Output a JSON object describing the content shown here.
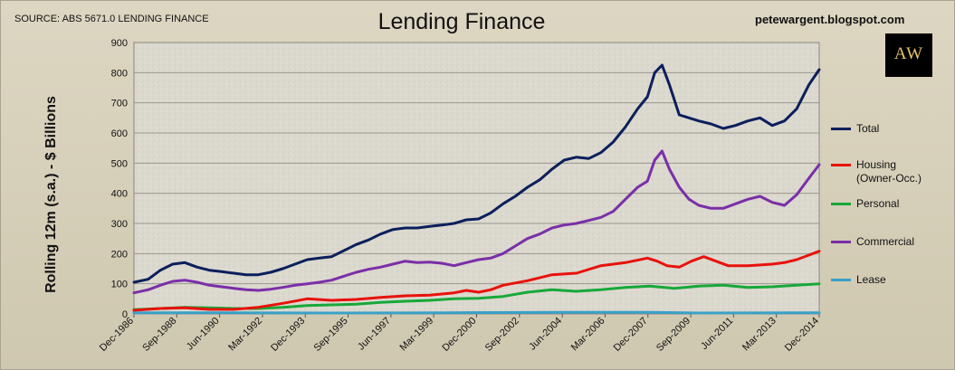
{
  "header": {
    "source": "SOURCE: ABS 5671.0 LENDING FINANCE",
    "blog": "petewargent.blogspot.com",
    "logo_text": "AW"
  },
  "colors": {
    "Total": "#0b1f5c",
    "Housing": "#e8120c",
    "Personal": "#18a83a",
    "Commercial": "#7a2fa8",
    "Lease": "#3aa0c8"
  },
  "chart_data": {
    "type": "line",
    "title": "Lending Finance",
    "xlabel": "",
    "ylabel": "Rolling 12m (s.a.) - $ Billions",
    "ylim": [
      0,
      900
    ],
    "yticks": [
      0,
      100,
      200,
      300,
      400,
      500,
      600,
      700,
      800,
      900
    ],
    "xlim": [
      1986.92,
      2014.92
    ],
    "xtick_labels": [
      "Dec-1986",
      "Sep-1988",
      "Jun-1990",
      "Mar-1992",
      "Dec-1993",
      "Sep-1995",
      "Jun-1997",
      "Mar-1999",
      "Dec-2000",
      "Sep-2002",
      "Jun-2004",
      "Mar-2006",
      "Dec-2007",
      "Sep-2009",
      "Jun-2011",
      "Mar-2013",
      "Dec-2014"
    ],
    "xtick_values": [
      1986.92,
      1988.67,
      1990.42,
      1992.17,
      1993.92,
      1995.67,
      1997.42,
      1999.17,
      2000.92,
      2002.67,
      2004.42,
      2006.17,
      2007.92,
      2009.67,
      2011.42,
      2013.17,
      2014.92
    ],
    "grid": true,
    "legend": "right",
    "series": [
      {
        "name": "Total",
        "label": "Total",
        "x": [
          1986.92,
          1987.5,
          1988.0,
          1988.5,
          1989.0,
          1989.5,
          1990.0,
          1990.5,
          1991.0,
          1991.5,
          1992.0,
          1992.5,
          1993.0,
          1993.5,
          1994.0,
          1994.5,
          1995.0,
          1995.5,
          1996.0,
          1996.5,
          1997.0,
          1997.5,
          1998.0,
          1998.5,
          1999.0,
          1999.5,
          2000.0,
          2000.5,
          2001.0,
          2001.5,
          2002.0,
          2002.5,
          2003.0,
          2003.5,
          2004.0,
          2004.5,
          2005.0,
          2005.5,
          2006.0,
          2006.5,
          2007.0,
          2007.5,
          2007.9,
          2008.2,
          2008.5,
          2008.8,
          2009.2,
          2009.6,
          2010.0,
          2010.5,
          2011.0,
          2011.5,
          2012.0,
          2012.5,
          2013.0,
          2013.5,
          2014.0,
          2014.5,
          2014.92
        ],
        "values": [
          105,
          115,
          145,
          165,
          170,
          155,
          145,
          140,
          135,
          130,
          130,
          138,
          150,
          165,
          180,
          185,
          190,
          210,
          230,
          245,
          265,
          280,
          285,
          285,
          290,
          295,
          300,
          312,
          315,
          335,
          365,
          390,
          420,
          445,
          480,
          510,
          520,
          515,
          535,
          570,
          620,
          680,
          720,
          800,
          825,
          760,
          660,
          650,
          640,
          630,
          615,
          625,
          640,
          650,
          625,
          640,
          680,
          760,
          810
        ]
      },
      {
        "name": "Housing",
        "label": "Housing (Owner-Occ.)",
        "x": [
          1986.92,
          1988.0,
          1989.0,
          1990.0,
          1991.0,
          1992.0,
          1993.0,
          1994.0,
          1995.0,
          1996.0,
          1997.0,
          1998.0,
          1999.0,
          2000.0,
          2000.5,
          2001.0,
          2001.5,
          2002.0,
          2003.0,
          2004.0,
          2005.0,
          2006.0,
          2007.0,
          2007.9,
          2008.3,
          2008.7,
          2009.2,
          2009.7,
          2010.2,
          2010.7,
          2011.2,
          2012.0,
          2013.0,
          2013.5,
          2014.0,
          2014.5,
          2014.92
        ],
        "values": [
          12,
          18,
          20,
          15,
          15,
          22,
          35,
          50,
          45,
          48,
          55,
          60,
          62,
          70,
          78,
          72,
          80,
          95,
          110,
          130,
          135,
          160,
          170,
          185,
          175,
          160,
          155,
          175,
          190,
          175,
          160,
          160,
          165,
          170,
          180,
          195,
          208
        ]
      },
      {
        "name": "Personal",
        "label": "Personal",
        "x": [
          1986.92,
          1988.0,
          1989.0,
          1990.0,
          1991.0,
          1992.0,
          1993.0,
          1994.0,
          1995.0,
          1996.0,
          1997.0,
          1998.0,
          1999.0,
          2000.0,
          2001.0,
          2002.0,
          2003.0,
          2004.0,
          2005.0,
          2006.0,
          2007.0,
          2008.0,
          2009.0,
          2010.0,
          2011.0,
          2012.0,
          2013.0,
          2014.0,
          2014.92
        ],
        "values": [
          14,
          18,
          22,
          20,
          18,
          18,
          22,
          28,
          30,
          32,
          38,
          42,
          45,
          50,
          52,
          58,
          72,
          80,
          75,
          80,
          88,
          92,
          85,
          92,
          95,
          88,
          90,
          95,
          100
        ]
      },
      {
        "name": "Commercial",
        "label": "Commercial",
        "x": [
          1986.92,
          1987.5,
          1988.0,
          1988.5,
          1989.0,
          1989.5,
          1990.0,
          1990.5,
          1991.0,
          1991.5,
          1992.0,
          1992.5,
          1993.0,
          1993.5,
          1994.0,
          1994.5,
          1995.0,
          1995.5,
          1996.0,
          1996.5,
          1997.0,
          1997.5,
          1998.0,
          1998.5,
          1999.0,
          1999.5,
          2000.0,
          2000.5,
          2001.0,
          2001.5,
          2002.0,
          2002.5,
          2003.0,
          2003.5,
          2004.0,
          2004.5,
          2005.0,
          2005.5,
          2006.0,
          2006.5,
          2007.0,
          2007.5,
          2007.9,
          2008.2,
          2008.5,
          2008.8,
          2009.2,
          2009.6,
          2010.0,
          2010.5,
          2011.0,
          2011.5,
          2012.0,
          2012.5,
          2013.0,
          2013.5,
          2014.0,
          2014.5,
          2014.92
        ],
        "values": [
          70,
          80,
          95,
          108,
          112,
          105,
          95,
          90,
          85,
          80,
          78,
          82,
          88,
          95,
          100,
          105,
          112,
          125,
          138,
          148,
          155,
          165,
          175,
          170,
          172,
          168,
          160,
          170,
          180,
          185,
          200,
          225,
          250,
          265,
          285,
          295,
          300,
          310,
          320,
          340,
          380,
          420,
          440,
          510,
          540,
          480,
          420,
          380,
          360,
          350,
          350,
          365,
          380,
          390,
          370,
          360,
          395,
          450,
          495
        ]
      },
      {
        "name": "Lease",
        "label": "Lease",
        "x": [
          1986.92,
          1990.0,
          1995.0,
          2000.0,
          2005.0,
          2008.0,
          2010.0,
          2014.92
        ],
        "values": [
          4,
          4,
          3,
          4,
          5,
          5,
          3,
          4
        ]
      }
    ]
  }
}
